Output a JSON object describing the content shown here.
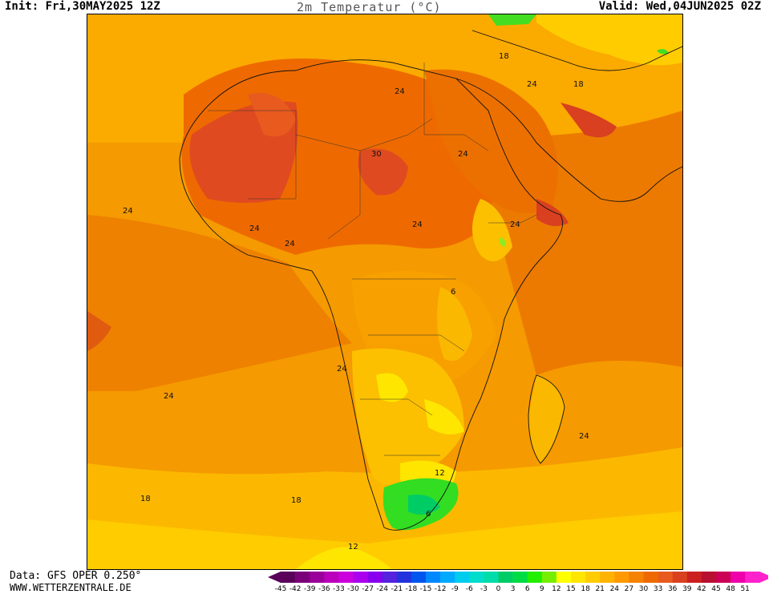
{
  "header": {
    "init": "Init: Fri,30MAY2025 12Z",
    "title": "2m Temperatur (°C)",
    "valid": "Valid: Wed,04JUN2025 02Z"
  },
  "footer": {
    "data_source": "Data: GFS OPER 0.250°",
    "website": "WWW.WETTERZENTRALE.DE"
  },
  "legend": {
    "ticks": [
      "-45",
      "-42",
      "-39",
      "-36",
      "-33",
      "-30",
      "-27",
      "-24",
      "-21",
      "-18",
      "-15",
      "-12",
      "-9",
      "-6",
      "-3",
      "0",
      "3",
      "6",
      "9",
      "12",
      "15",
      "18",
      "21",
      "24",
      "27",
      "30",
      "33",
      "36",
      "39",
      "42",
      "45",
      "48",
      "51"
    ],
    "colors": [
      "#5a005a",
      "#7a007a",
      "#9a009a",
      "#bb00bb",
      "#cc00dd",
      "#aa00ee",
      "#8800ee",
      "#5522dd",
      "#2233dd",
      "#0055ee",
      "#0088ff",
      "#00aaff",
      "#00ccee",
      "#00ddcc",
      "#00ddaa",
      "#00cc66",
      "#00dd44",
      "#22ee00",
      "#77ee00",
      "#ffff00",
      "#ffe600",
      "#ffcc00",
      "#ffb300",
      "#ff9900",
      "#f58200",
      "#ee6a00",
      "#e85a1e",
      "#d94020",
      "#cc2020",
      "#b81030",
      "#cc0055",
      "#ee00aa",
      "#ff22cc"
    ]
  },
  "map_labels": [
    {
      "text": "24"
    },
    {
      "text": "30"
    },
    {
      "text": "24"
    },
    {
      "text": "24"
    },
    {
      "text": "24"
    },
    {
      "text": "24"
    },
    {
      "text": "24"
    },
    {
      "text": "24"
    },
    {
      "text": "18"
    },
    {
      "text": "18"
    },
    {
      "text": "24"
    },
    {
      "text": "24"
    },
    {
      "text": "24"
    },
    {
      "text": "24"
    },
    {
      "text": "6"
    },
    {
      "text": "12"
    },
    {
      "text": "6"
    },
    {
      "text": "18"
    },
    {
      "text": "18"
    },
    {
      "text": "12"
    }
  ]
}
